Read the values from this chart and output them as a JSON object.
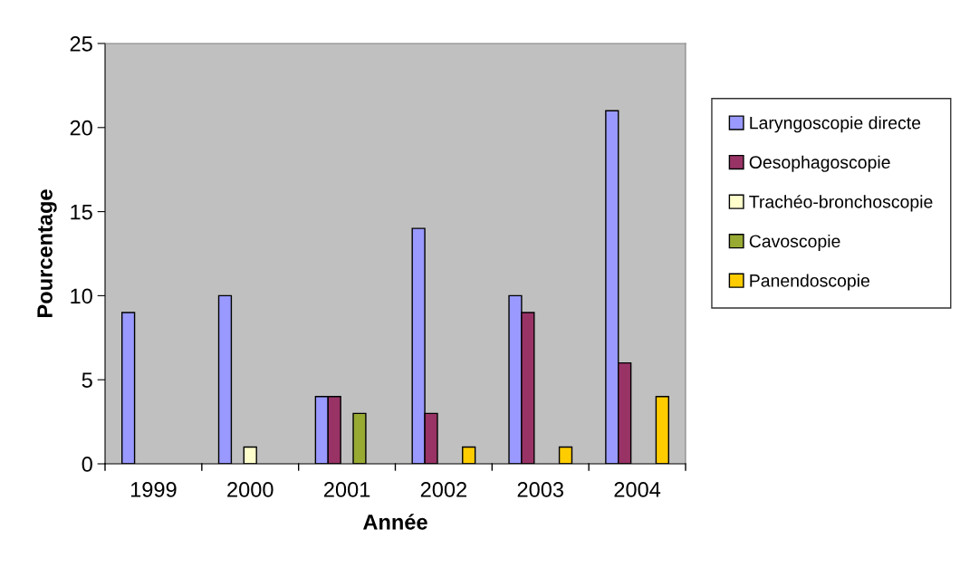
{
  "chart_data": {
    "type": "bar",
    "xlabel": "Année",
    "ylabel": "Pourcentage",
    "categories": [
      "1999",
      "2000",
      "2001",
      "2002",
      "2003",
      "2004"
    ],
    "series": [
      {
        "name": "Laryngoscopie directe",
        "color": "#9999ff",
        "values": [
          9,
          10,
          4,
          14,
          10,
          21
        ]
      },
      {
        "name": "Oesophagoscopie",
        "color": "#993366",
        "values": [
          null,
          null,
          4,
          3,
          9,
          6
        ]
      },
      {
        "name": "Trachéo-bronchoscopie",
        "color": "#ffffcc",
        "values": [
          null,
          1,
          null,
          null,
          null,
          null
        ]
      },
      {
        "name": "Cavoscopie",
        "color": "#99aa33",
        "values": [
          null,
          null,
          3,
          null,
          null,
          null
        ]
      },
      {
        "name": "Panendoscopie",
        "color": "#ffcc00",
        "values": [
          null,
          null,
          null,
          1,
          1,
          4
        ]
      }
    ],
    "ylim": [
      0,
      25
    ],
    "yticks": [
      0,
      5,
      10,
      15,
      20,
      25
    ],
    "grid": false,
    "legend": "right"
  }
}
